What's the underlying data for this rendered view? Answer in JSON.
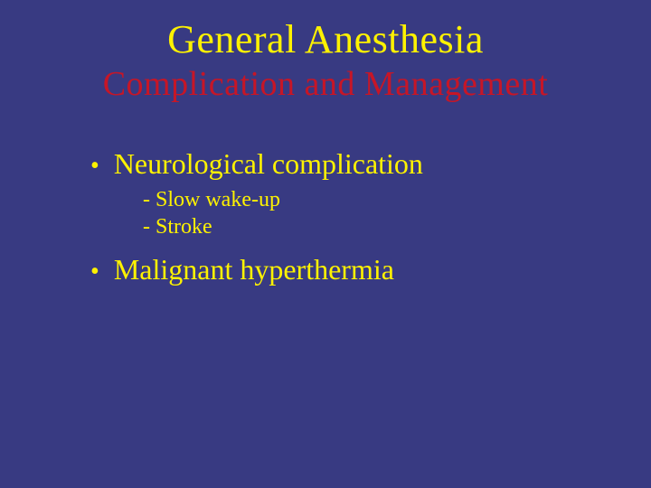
{
  "slide": {
    "title": "General Anesthesia",
    "subtitle": "Complication and Management",
    "background_color": "#383a82",
    "title_color": "#fef200",
    "subtitle_color": "#c61627",
    "text_color": "#fef200",
    "title_fontsize": 44,
    "subtitle_fontsize": 38,
    "bullet_fontsize": 32,
    "subitem_fontsize": 24,
    "font_family": "Times New Roman",
    "bullets": [
      {
        "text": "Neurological complication",
        "sub_items": [
          "- Slow wake-up",
          "- Stroke"
        ]
      },
      {
        "text": "Malignant hyperthermia",
        "sub_items": []
      }
    ]
  }
}
